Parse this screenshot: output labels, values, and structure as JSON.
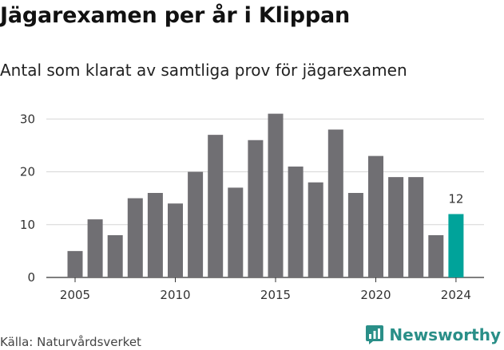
{
  "chart_data": {
    "type": "bar",
    "title": "Jägarexamen per år i Klippan",
    "subtitle": "Antal som klarat av samtliga prov för jägarexamen",
    "x": [
      2005,
      2006,
      2007,
      2008,
      2009,
      2010,
      2011,
      2012,
      2013,
      2014,
      2015,
      2016,
      2017,
      2018,
      2019,
      2020,
      2021,
      2022,
      2023,
      2024
    ],
    "values": [
      5,
      11,
      8,
      15,
      16,
      14,
      20,
      27,
      17,
      26,
      31,
      21,
      18,
      28,
      16,
      23,
      19,
      19,
      8,
      12
    ],
    "x_ticks": [
      "2005",
      "2010",
      "2015",
      "2020",
      "2024"
    ],
    "y_ticks": [
      0,
      10,
      20,
      30
    ],
    "ylim": [
      0,
      32
    ],
    "grid": true,
    "highlight": {
      "x": 2024,
      "label": "12",
      "color": "#00a39a"
    },
    "bar_color": "#706f73"
  },
  "footer": {
    "source": "Källa: Naturvårdsverket",
    "brand": "Newsworthy",
    "brand_color": "#2a8f88",
    "brand_icon": "bar-chart-speech-icon"
  }
}
